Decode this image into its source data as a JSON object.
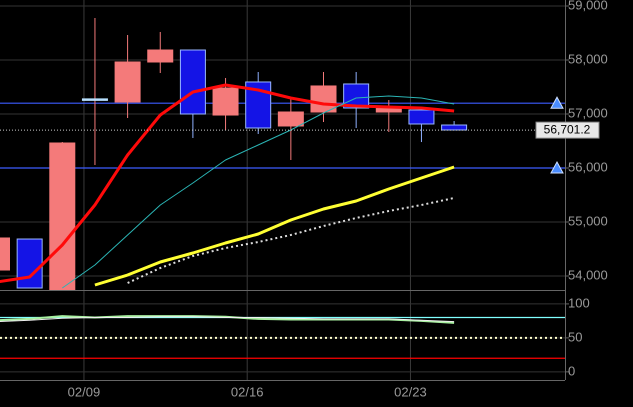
{
  "chart_data": [
    {
      "type": "candlestick",
      "categories": [
        null,
        null,
        null,
        "02/09",
        null,
        null,
        null,
        null,
        "02/16",
        null,
        null,
        null,
        null,
        "02/23",
        null
      ],
      "open": [
        54111,
        54685,
        53741,
        57260,
        57222,
        57963,
        58185,
        56981,
        57593,
        56778,
        57037,
        57556,
        57037,
        57074,
        56796
      ],
      "high": [
        54704,
        54685,
        56481,
        58778,
        58463,
        58519,
        58185,
        57667,
        57778,
        57315,
        57778,
        57778,
        57259,
        57074,
        56870
      ],
      "low": [
        54111,
        53778,
        53741,
        56056,
        56926,
        57759,
        56556,
        56704,
        56630,
        56148,
        56852,
        56741,
        56667,
        56481,
        56704
      ],
      "close": [
        54704,
        53778,
        56463,
        57280,
        57963,
        58185,
        57000,
        57481,
        56741,
        57037,
        57519,
        57111,
        57111,
        56815,
        56704
      ],
      "up_color": "#f47a7a",
      "down_color": "#1414e6",
      "doji_color": "#b8e0ff",
      "series": [
        {
          "color": "#ff0a0a",
          "width": 3,
          "values": [
            53889,
            53981,
            54574,
            55315,
            56241,
            56981,
            57407,
            57537,
            57444,
            57296,
            57185,
            57148,
            57130,
            57111,
            57056
          ]
        },
        {
          "color": "#2bb5b5",
          "width": 1,
          "values": [
            null,
            null,
            53778,
            54204,
            54759,
            55315,
            55722,
            56148,
            56426,
            56704,
            57019,
            57296,
            57333,
            57296,
            57185
          ]
        },
        {
          "color": "#ffff33",
          "width": 3,
          "values": [
            null,
            null,
            null,
            53833,
            54019,
            54259,
            54426,
            54611,
            54778,
            55037,
            55241,
            55389,
            55611,
            55815,
            56019
          ]
        },
        {
          "color": "#dddddd",
          "width": 2,
          "dotted": true,
          "values": [
            null,
            null,
            null,
            null,
            53870,
            54148,
            54370,
            54519,
            54630,
            54759,
            54926,
            55074,
            55204,
            55315,
            55444
          ]
        }
      ],
      "hlines": [
        {
          "value": 57200,
          "color": "#3c5cff"
        },
        {
          "value": 56000,
          "color": "#3c5cff"
        }
      ],
      "last_price": {
        "value": 56701.2,
        "label": "56,701.2"
      },
      "ylim": [
        53741,
        59111
      ],
      "yticks": [
        {
          "value": 54000,
          "label": "54,000"
        },
        {
          "value": 55000,
          "label": "55,000"
        },
        {
          "value": 56000,
          "label": "56,000"
        },
        {
          "value": 57000,
          "label": "57,000"
        },
        {
          "value": 58000,
          "label": "58,000"
        },
        {
          "value": 59000,
          "label": "59,000"
        }
      ],
      "grid": true
    },
    {
      "type": "line",
      "series": [
        {
          "color": "#a8f0a0",
          "width": 2,
          "values": [
            76,
            78,
            82,
            80,
            82,
            82,
            82,
            81,
            78,
            77,
            77,
            77,
            77,
            75,
            72
          ]
        },
        {
          "color": "#f0f0f0",
          "width": 1,
          "values": [
            74,
            76,
            79,
            80,
            80,
            81,
            81,
            80,
            80,
            79,
            78,
            78,
            78,
            76,
            74
          ]
        }
      ],
      "hlines": [
        {
          "value": 80,
          "color": "#80ffff"
        },
        {
          "value": 50,
          "color": "#ffffcc",
          "dotted": true
        },
        {
          "value": 20,
          "color": "#ff0000"
        }
      ],
      "ylim": [
        -12,
        119
      ],
      "yticks": [
        0,
        50,
        100
      ],
      "grid": true
    }
  ]
}
